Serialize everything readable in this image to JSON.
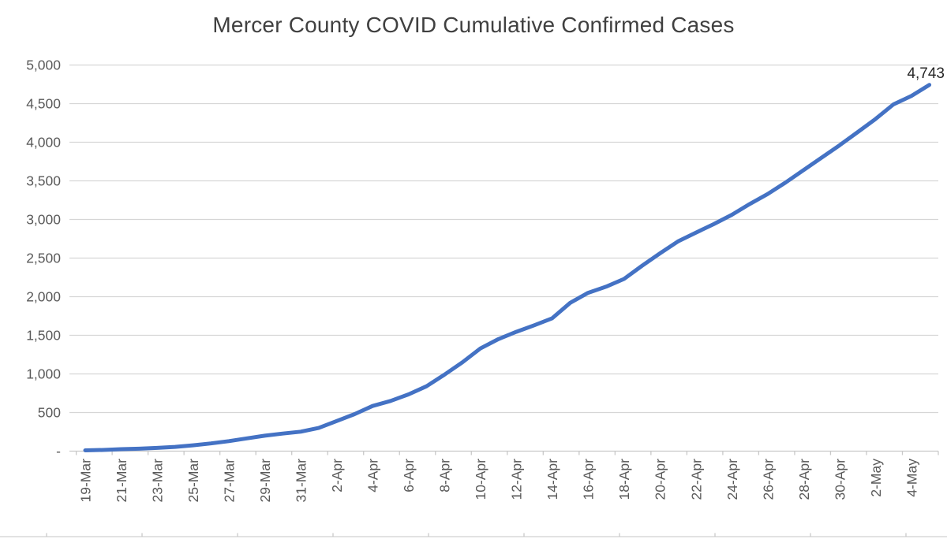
{
  "title": "Mercer County COVID Cumulative Confirmed Cases",
  "end_value_label": "4,743",
  "colors": {
    "series_line": "#4472C4",
    "gridline": "#D6D6D6",
    "axis_line": "#C8C8C8",
    "tick": "#C8C8C8",
    "title_text": "#404040",
    "axis_text": "#595959",
    "end_label_text": "#262626",
    "bottom_border": "#D9D9D9"
  },
  "chart_data": {
    "type": "line",
    "title": "Mercer County COVID Cumulative Confirmed Cases",
    "xlabel": "",
    "ylabel": "",
    "ylim": [
      0,
      5000
    ],
    "grid": true,
    "legend": "none",
    "y_tick_values": [
      0,
      500,
      1000,
      1500,
      2000,
      2500,
      3000,
      3500,
      4000,
      4500,
      5000
    ],
    "y_tick_labels": [
      "-",
      "500",
      "1,000",
      "1,500",
      "2,000",
      "2,500",
      "3,000",
      "3,500",
      "4,000",
      "4,500",
      "5,000"
    ],
    "x_tick_labels": [
      "19-Mar",
      "21-Mar",
      "23-Mar",
      "25-Mar",
      "27-Mar",
      "29-Mar",
      "31-Mar",
      "2-Apr",
      "4-Apr",
      "6-Apr",
      "8-Apr",
      "10-Apr",
      "12-Apr",
      "14-Apr",
      "16-Apr",
      "18-Apr",
      "20-Apr",
      "22-Apr",
      "24-Apr",
      "26-Apr",
      "28-Apr",
      "30-Apr",
      "2-May",
      "4-May"
    ],
    "categories": [
      "19-Mar",
      "20-Mar",
      "21-Mar",
      "22-Mar",
      "23-Mar",
      "24-Mar",
      "25-Mar",
      "26-Mar",
      "27-Mar",
      "28-Mar",
      "29-Mar",
      "30-Mar",
      "31-Mar",
      "1-Apr",
      "2-Apr",
      "3-Apr",
      "4-Apr",
      "5-Apr",
      "6-Apr",
      "7-Apr",
      "8-Apr",
      "9-Apr",
      "10-Apr",
      "11-Apr",
      "12-Apr",
      "13-Apr",
      "14-Apr",
      "15-Apr",
      "16-Apr",
      "17-Apr",
      "18-Apr",
      "19-Apr",
      "20-Apr",
      "21-Apr",
      "22-Apr",
      "23-Apr",
      "24-Apr",
      "25-Apr",
      "26-Apr",
      "27-Apr",
      "28-Apr",
      "29-Apr",
      "30-Apr",
      "1-May",
      "2-May",
      "3-May",
      "4-May",
      "5-May"
    ],
    "series": [
      {
        "name": "Cumulative Confirmed Cases",
        "values": [
          10,
          15,
          25,
          32,
          42,
          55,
          75,
          100,
          130,
          165,
          200,
          228,
          252,
          300,
          390,
          480,
          585,
          650,
          735,
          840,
          990,
          1150,
          1330,
          1450,
          1545,
          1630,
          1720,
          1920,
          2050,
          2130,
          2230,
          2400,
          2560,
          2715,
          2830,
          2940,
          3060,
          3200,
          3330,
          3480,
          3640,
          3800,
          3960,
          4130,
          4300,
          4490,
          4600,
          4743
        ]
      }
    ],
    "annotations": [
      {
        "text": "4,743",
        "attached_to": "last-point"
      }
    ]
  }
}
